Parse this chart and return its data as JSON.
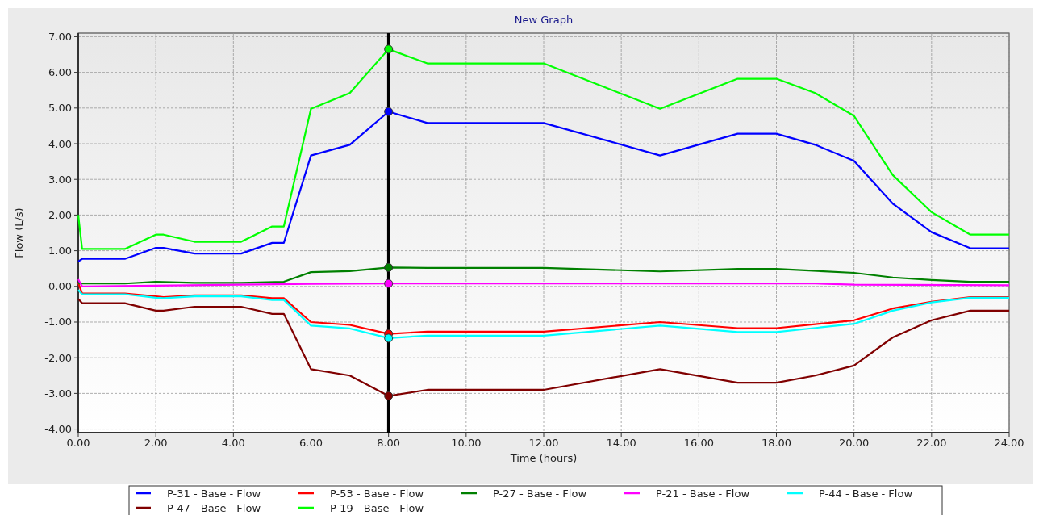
{
  "chart_data": {
    "type": "line",
    "title": "New Graph",
    "xlabel": "Time (hours)",
    "ylabel": "Flow (L/s)",
    "xlim": [
      0,
      24
    ],
    "ylim": [
      -4.1,
      7.1
    ],
    "xticks": [
      {
        "value": 0,
        "label": "0.00"
      },
      {
        "value": 2,
        "label": "2.00"
      },
      {
        "value": 4,
        "label": "4.00"
      },
      {
        "value": 6,
        "label": "6.00"
      },
      {
        "value": 8,
        "label": "8.00"
      },
      {
        "value": 10,
        "label": "10.00"
      },
      {
        "value": 12,
        "label": "12.00"
      },
      {
        "value": 14,
        "label": "14.00"
      },
      {
        "value": 16,
        "label": "16.00"
      },
      {
        "value": 18,
        "label": "18.00"
      },
      {
        "value": 20,
        "label": "20.00"
      },
      {
        "value": 22,
        "label": "22.00"
      },
      {
        "value": 24,
        "label": "24.00"
      }
    ],
    "yticks": [
      {
        "value": -4,
        "label": "-4.00"
      },
      {
        "value": -3,
        "label": "-3.00"
      },
      {
        "value": -2,
        "label": "-2.00"
      },
      {
        "value": -1,
        "label": "-1.00"
      },
      {
        "value": 0,
        "label": "0.00"
      },
      {
        "value": 1,
        "label": "1.00"
      },
      {
        "value": 2,
        "label": "2.00"
      },
      {
        "value": 3,
        "label": "3.00"
      },
      {
        "value": 4,
        "label": "4.00"
      },
      {
        "value": 5,
        "label": "5.00"
      },
      {
        "value": 6,
        "label": "6.00"
      },
      {
        "value": 7,
        "label": "7.00"
      }
    ],
    "grid": true,
    "legend": "bottom",
    "line_style": "solid",
    "ref_lines": [
      {
        "axis": "x",
        "value": 8,
        "color": "#000000"
      }
    ],
    "series": [
      {
        "name": "P-31 - Base - Flow",
        "color": "#0000ff",
        "x": [
          0,
          0.1,
          1.2,
          2,
          2.2,
          3,
          4.2,
          5,
          5.3,
          6,
          7,
          8,
          9,
          12,
          15,
          17,
          18,
          19,
          20,
          21,
          22,
          23,
          24
        ],
        "values": [
          0.7,
          0.77,
          0.77,
          1.08,
          1.08,
          0.92,
          0.92,
          1.22,
          1.22,
          3.67,
          3.97,
          4.9,
          4.58,
          4.58,
          3.67,
          4.28,
          4.28,
          3.97,
          3.52,
          2.32,
          1.52,
          1.07,
          1.07
        ]
      },
      {
        "name": "P-53 - Base - Flow",
        "color": "#ff0000",
        "x": [
          0,
          0.1,
          1.2,
          2,
          2.2,
          3,
          4.2,
          5,
          5.3,
          6,
          7,
          8,
          9,
          12,
          15,
          17,
          18,
          20,
          21,
          22,
          23,
          24
        ],
        "values": [
          0.1,
          -0.2,
          -0.2,
          -0.28,
          -0.3,
          -0.25,
          -0.25,
          -0.33,
          -0.33,
          -1.0,
          -1.08,
          -1.33,
          -1.27,
          -1.27,
          -1.0,
          -1.17,
          -1.17,
          -0.95,
          -0.62,
          -0.43,
          -0.3,
          -0.3
        ]
      },
      {
        "name": "P-27 - Base - Flow",
        "color": "#008000",
        "x": [
          0,
          1.2,
          2,
          3,
          4.2,
          5.3,
          6,
          7,
          8,
          9,
          12,
          15,
          17,
          18,
          20,
          21,
          22,
          23,
          24
        ],
        "values": [
          0.08,
          0.08,
          0.13,
          0.1,
          0.1,
          0.13,
          0.4,
          0.43,
          0.53,
          0.52,
          0.52,
          0.42,
          0.49,
          0.49,
          0.38,
          0.25,
          0.18,
          0.13,
          0.13
        ]
      },
      {
        "name": "P-21 - Base - Flow",
        "color": "#ff00ff",
        "x": [
          0,
          0.1,
          2,
          6,
          8,
          19,
          20,
          24
        ],
        "values": [
          0.2,
          0,
          0.02,
          0.07,
          0.08,
          0.08,
          0.05,
          0.03
        ]
      },
      {
        "name": "P-44 - Base - Flow",
        "color": "#00ffff",
        "x": [
          0,
          0.1,
          1.2,
          2,
          2.2,
          3,
          4.2,
          5,
          5.3,
          6,
          7,
          8,
          9,
          12,
          15,
          17,
          18,
          20,
          21,
          22,
          23,
          24
        ],
        "values": [
          -0.1,
          -0.22,
          -0.22,
          -0.32,
          -0.33,
          -0.28,
          -0.28,
          -0.38,
          -0.38,
          -1.1,
          -1.18,
          -1.45,
          -1.38,
          -1.38,
          -1.1,
          -1.28,
          -1.28,
          -1.05,
          -0.68,
          -0.45,
          -0.32,
          -0.32
        ]
      },
      {
        "name": "P-47 - Base - Flow",
        "color": "#800000",
        "x": [
          0,
          0.1,
          1.2,
          2,
          2.2,
          3,
          4.2,
          5,
          5.3,
          6,
          7,
          8,
          9,
          12,
          15,
          17,
          18,
          19,
          20,
          21,
          22,
          23,
          24
        ],
        "values": [
          -0.35,
          -0.47,
          -0.47,
          -0.68,
          -0.68,
          -0.57,
          -0.57,
          -0.77,
          -0.77,
          -2.32,
          -2.5,
          -3.07,
          -2.9,
          -2.9,
          -2.32,
          -2.7,
          -2.7,
          -2.5,
          -2.22,
          -1.43,
          -0.95,
          -0.68,
          -0.68
        ]
      },
      {
        "name": "P-19 - Base - Flow",
        "color": "#00ff00",
        "x": [
          0,
          0.1,
          1.2,
          2,
          2.2,
          3,
          4.2,
          5,
          5.3,
          6,
          7,
          8,
          9,
          12,
          15,
          17,
          18,
          19,
          20,
          21,
          22,
          23,
          24
        ],
        "values": [
          2.0,
          1.05,
          1.05,
          1.45,
          1.45,
          1.25,
          1.25,
          1.68,
          1.68,
          4.98,
          5.42,
          6.65,
          6.25,
          6.25,
          4.98,
          5.82,
          5.82,
          5.42,
          4.78,
          3.12,
          2.08,
          1.45,
          1.45
        ]
      }
    ]
  }
}
